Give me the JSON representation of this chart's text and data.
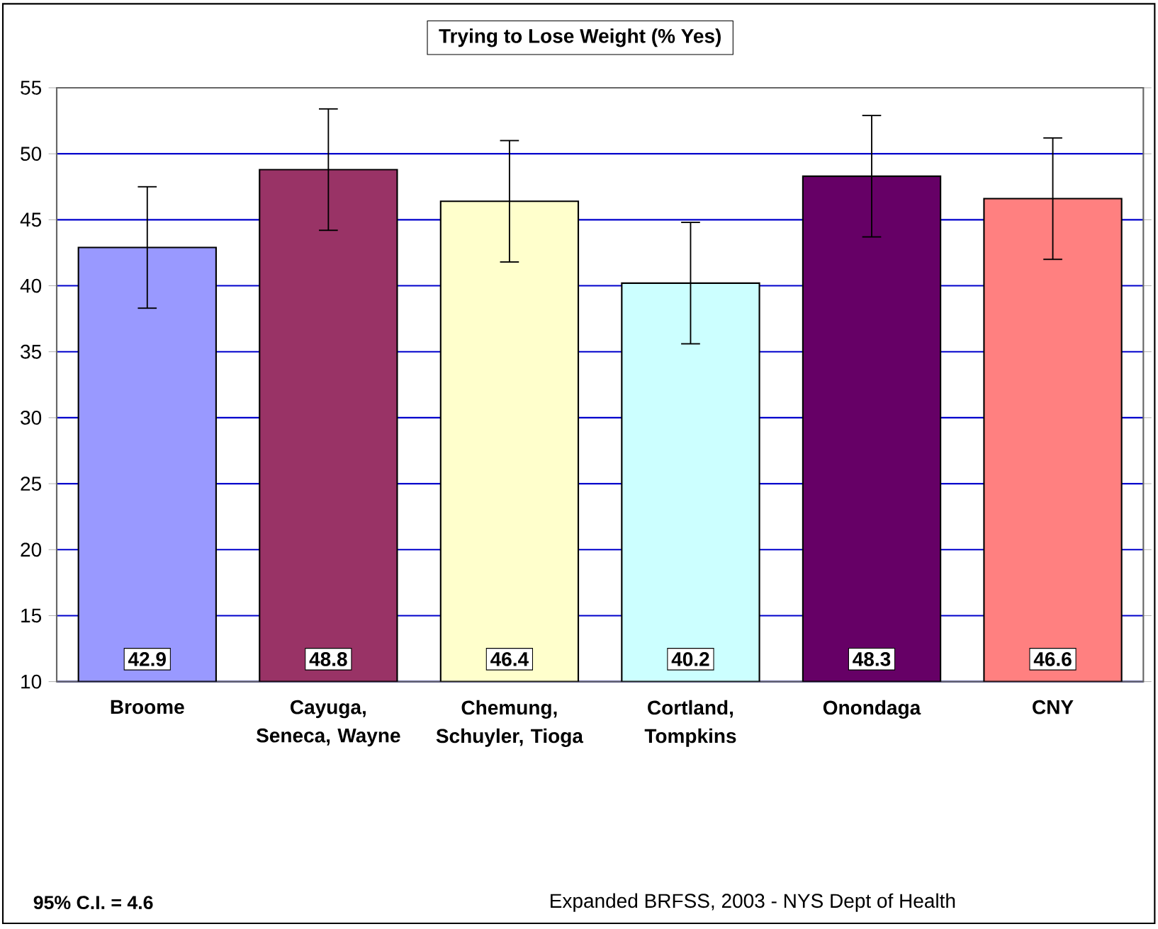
{
  "chart_data": {
    "type": "bar",
    "title": "Trying to Lose Weight (% Yes)",
    "categories": [
      "Broome",
      "Cayuga, Seneca, Wayne",
      "Chemung, Schuyler, Tioga",
      "Cortland, Tompkins",
      "Onondaga",
      "CNY"
    ],
    "values": [
      42.9,
      48.8,
      46.4,
      40.2,
      48.3,
      46.6
    ],
    "colors": [
      "#9999ff",
      "#993366",
      "#ffffcc",
      "#ccffff",
      "#660066",
      "#ff8080"
    ],
    "errors": [
      4.6,
      4.6,
      4.6,
      4.6,
      4.6,
      4.6
    ],
    "data_labels": true,
    "ylim": [
      10,
      55
    ],
    "yticks": [
      10,
      15,
      20,
      25,
      30,
      35,
      40,
      45,
      50,
      55
    ],
    "grid": "y",
    "annotations": [
      "95% C.I. = 4.6",
      "Expanded BRFSS, 2003 - NYS Dept of Health"
    ]
  }
}
